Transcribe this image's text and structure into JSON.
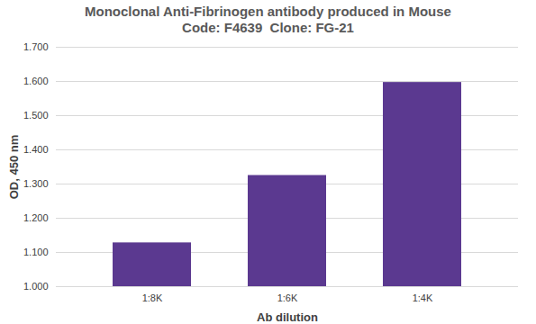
{
  "chart_data": {
    "type": "bar",
    "title": "Monoclonal Anti-Fibrinogen antibody produced in Mouse",
    "subtitle": "Code: F4639  Clone: FG-21",
    "x_label": "Ab dilution",
    "y_label": "OD, 450 nm",
    "categories": [
      "1:8K",
      "1:6K",
      "1:4K"
    ],
    "values": [
      1.128,
      1.325,
      1.597
    ],
    "color": "#5b3990",
    "ylim": [
      1.0,
      1.7
    ],
    "yticks": [
      {
        "value": 1.0,
        "label": "1.000"
      },
      {
        "value": 1.1,
        "label": "1.100"
      },
      {
        "value": 1.2,
        "label": "1.200"
      },
      {
        "value": 1.3,
        "label": "1.300"
      },
      {
        "value": 1.4,
        "label": "1.400"
      },
      {
        "value": 1.5,
        "label": "1.500"
      },
      {
        "value": 1.6,
        "label": "1.600"
      },
      {
        "value": 1.7,
        "label": "1.700"
      }
    ],
    "grid": true
  }
}
